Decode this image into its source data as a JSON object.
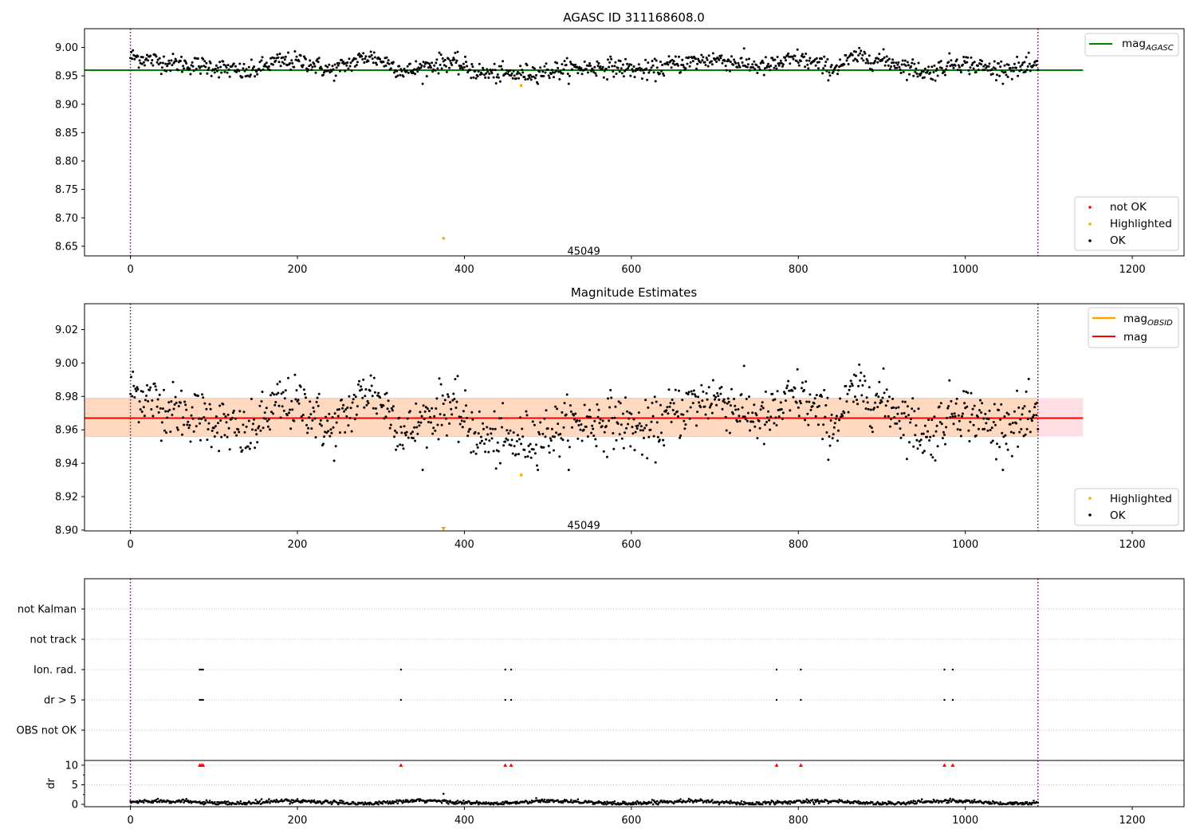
{
  "chart_data": [
    {
      "id": "agasc",
      "type": "scatter",
      "title": "AGASC ID 311168608.0",
      "xlim": [
        -55,
        1262
      ],
      "ylim": [
        8.633,
        9.033
      ],
      "xticks": [
        0,
        200,
        400,
        600,
        800,
        1000,
        1200
      ],
      "yticks": [
        9.0,
        8.95,
        8.9,
        8.85,
        8.8,
        8.75,
        8.7,
        8.65
      ],
      "ytick_labels": [
        "9.00",
        "8.95",
        "8.90",
        "8.85",
        "8.80",
        "8.75",
        "8.70",
        "8.65"
      ],
      "hline": {
        "name": "mag",
        "name_sub": "AGASC",
        "y": 8.96,
        "x_end": 1141,
        "color": "#008000"
      },
      "vlines": [
        0,
        1087
      ],
      "obsid_label": {
        "text": "45049",
        "x": 543,
        "y": 8.642
      },
      "series_ok": {
        "name": "OK",
        "color": "#000000",
        "x_range": [
          0,
          1087
        ],
        "mean": 8.967,
        "noise": 0.011,
        "anchors": [
          [
            0,
            8.984
          ],
          [
            50,
            8.972
          ],
          [
            100,
            8.966
          ],
          [
            140,
            8.955
          ],
          [
            175,
            8.975
          ],
          [
            210,
            8.975
          ],
          [
            240,
            8.958
          ],
          [
            285,
            8.985
          ],
          [
            310,
            8.972
          ],
          [
            330,
            8.957
          ],
          [
            380,
            8.976
          ],
          [
            420,
            8.955
          ],
          [
            460,
            8.952
          ],
          [
            530,
            8.963
          ],
          [
            580,
            8.966
          ],
          [
            620,
            8.958
          ],
          [
            650,
            8.97
          ],
          [
            700,
            8.98
          ],
          [
            760,
            8.965
          ],
          [
            800,
            8.981
          ],
          [
            840,
            8.962
          ],
          [
            870,
            8.984
          ],
          [
            910,
            8.975
          ],
          [
            955,
            8.955
          ],
          [
            990,
            8.975
          ],
          [
            1030,
            8.962
          ],
          [
            1087,
            8.965
          ]
        ]
      },
      "series_highlighted": {
        "name": "Highlighted",
        "color": "#ffa500",
        "points": [
          [
            375,
            8.664
          ],
          [
            468,
            8.933
          ]
        ]
      },
      "series_not_ok": {
        "name": "not OK",
        "color": "#ff0000"
      },
      "legend_top": "top-right",
      "legend_bottom": "bottom-right"
    },
    {
      "id": "estimates",
      "type": "scatter",
      "title": "Magnitude Estimates",
      "xlim": [
        -55,
        1262
      ],
      "ylim": [
        8.8995,
        9.0355
      ],
      "xticks": [
        0,
        200,
        400,
        600,
        800,
        1000,
        1200
      ],
      "yticks": [
        9.02,
        9.0,
        8.98,
        8.96,
        8.94,
        8.92,
        8.9
      ],
      "ytick_labels": [
        "9.02",
        "9.00",
        "8.98",
        "8.96",
        "8.94",
        "8.92",
        "8.90"
      ],
      "mag_line": {
        "name": "mag",
        "y": 8.967,
        "x_end": 1141,
        "color": "#ff0000"
      },
      "mag_obsid_line": {
        "name": "mag",
        "name_sub": "OBSID",
        "y": 8.967,
        "color": "#ffa500"
      },
      "band_outer": {
        "y0": 8.956,
        "y1": 8.979,
        "x_end": 1141,
        "color": "#ffdfe3"
      },
      "band_inner": {
        "y0": 8.956,
        "y1": 8.979,
        "x_start": 0,
        "x_end": 1087,
        "color": "#ffd8c0"
      },
      "vlines": [
        0,
        1087
      ],
      "obsid_label": {
        "text": "45049",
        "x": 543,
        "y": 8.903
      },
      "series_ok": {
        "name": "OK",
        "color": "#000000"
      },
      "series_highlighted": {
        "name": "Highlighted",
        "color": "#ffa500",
        "points": [
          [
            468,
            8.933
          ]
        ],
        "clipped_marker": [
          375,
          8.9
        ]
      },
      "legend_top": "top-right",
      "legend_bottom": "bottom-right"
    },
    {
      "id": "flags",
      "type": "scatter",
      "xlim": [
        -55,
        1262
      ],
      "categories": [
        "not Kalman",
        "not track",
        "Ion. rad.",
        "dr > 5",
        "OBS not OK"
      ],
      "flag_x": [
        83,
        85,
        87,
        324,
        449,
        456,
        774,
        803,
        975,
        985
      ],
      "flag_rows": [
        "Ion. rad.",
        "dr > 5"
      ],
      "vlines": [
        0,
        1087
      ]
    },
    {
      "id": "dr",
      "type": "scatter",
      "ylabel": "dr",
      "xlim": [
        -55,
        1262
      ],
      "ylim": [
        -0.6,
        11.2
      ],
      "xticks": [
        0,
        200,
        400,
        600,
        800,
        1000,
        1200
      ],
      "yticks": [
        0,
        5,
        10
      ],
      "ytick_labels": [
        "0",
        "5",
        "10"
      ],
      "outlier": [
        375,
        2.7
      ],
      "capped_x": [
        83,
        85,
        87,
        324,
        449,
        456,
        774,
        803,
        975,
        985
      ],
      "capped_value": 10,
      "vlines": [
        0,
        1087
      ]
    }
  ]
}
